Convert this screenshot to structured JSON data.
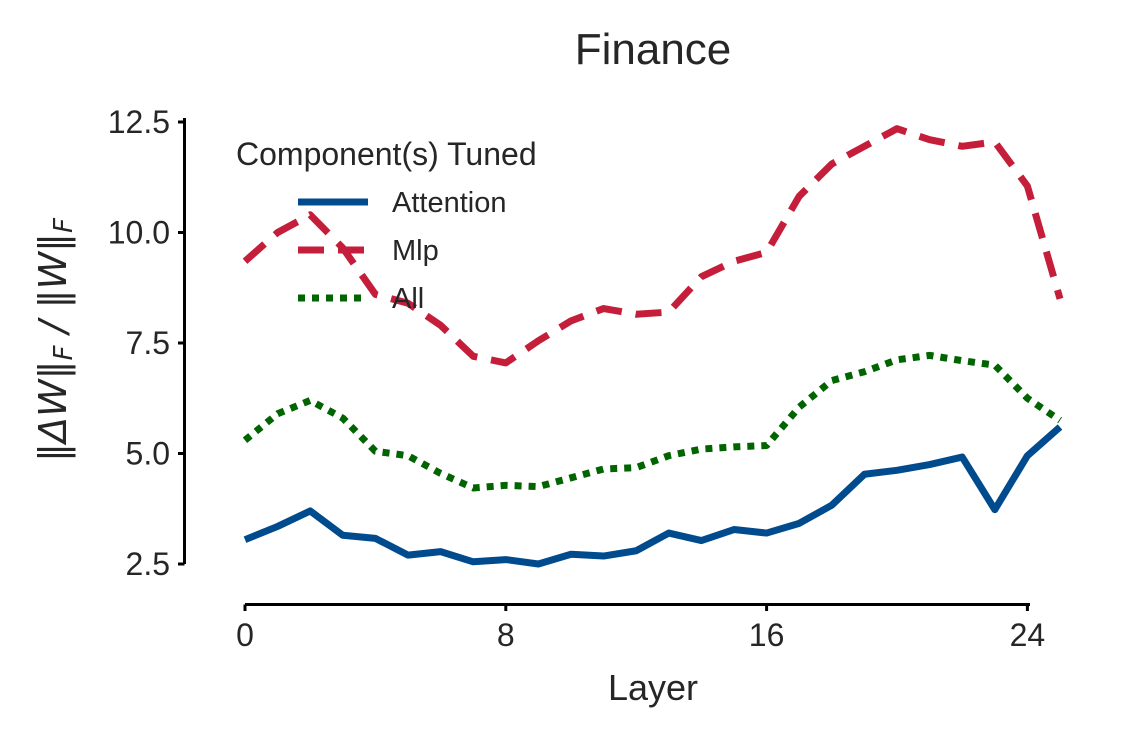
{
  "chart_data": {
    "type": "line",
    "title": "Finance",
    "xlabel": "Layer",
    "ylabel": "‖ΔW‖_F / ‖W‖_F",
    "xlim": [
      0,
      25
    ],
    "ylim": [
      2.5,
      12.5
    ],
    "xticks": [
      0,
      8,
      16,
      24
    ],
    "xtick_labels": [
      "0",
      "8",
      "16",
      "24"
    ],
    "yticks": [
      2.5,
      5.0,
      7.5,
      10.0,
      12.5
    ],
    "ytick_labels": [
      "2.5",
      "5.0",
      "7.5",
      "10.0",
      "12.5"
    ],
    "grid": false,
    "legend": {
      "title": "Component(s) Tuned",
      "placement": "top-left"
    },
    "x": [
      0,
      1,
      2,
      3,
      4,
      5,
      6,
      7,
      8,
      9,
      10,
      11,
      12,
      13,
      14,
      15,
      16,
      17,
      18,
      19,
      20,
      21,
      22,
      23,
      24,
      25
    ],
    "series": [
      {
        "name": "Attention",
        "color": "#004b8d",
        "style": "solid",
        "values": [
          3.05,
          3.35,
          3.7,
          3.15,
          3.08,
          2.7,
          2.78,
          2.55,
          2.6,
          2.5,
          2.72,
          2.68,
          2.8,
          3.2,
          3.03,
          3.28,
          3.2,
          3.42,
          3.83,
          4.53,
          4.62,
          4.75,
          4.92,
          3.73,
          4.95,
          5.6
        ]
      },
      {
        "name": "Mlp",
        "color": "#c41e3a",
        "style": "dashed",
        "values": [
          9.35,
          10.0,
          10.4,
          9.65,
          8.6,
          8.4,
          7.9,
          7.2,
          7.05,
          7.55,
          8.0,
          8.28,
          8.15,
          8.2,
          9.0,
          9.35,
          9.55,
          10.82,
          11.55,
          11.95,
          12.35,
          12.1,
          11.95,
          12.05,
          11.05,
          8.5
        ]
      },
      {
        "name": "All",
        "color": "#006400",
        "style": "dotted",
        "values": [
          5.3,
          5.9,
          6.2,
          5.8,
          5.05,
          4.95,
          4.55,
          4.22,
          4.28,
          4.25,
          4.45,
          4.65,
          4.68,
          4.95,
          5.1,
          5.15,
          5.18,
          6.05,
          6.65,
          6.85,
          7.12,
          7.22,
          7.1,
          7.0,
          6.25,
          5.75
        ]
      }
    ]
  }
}
